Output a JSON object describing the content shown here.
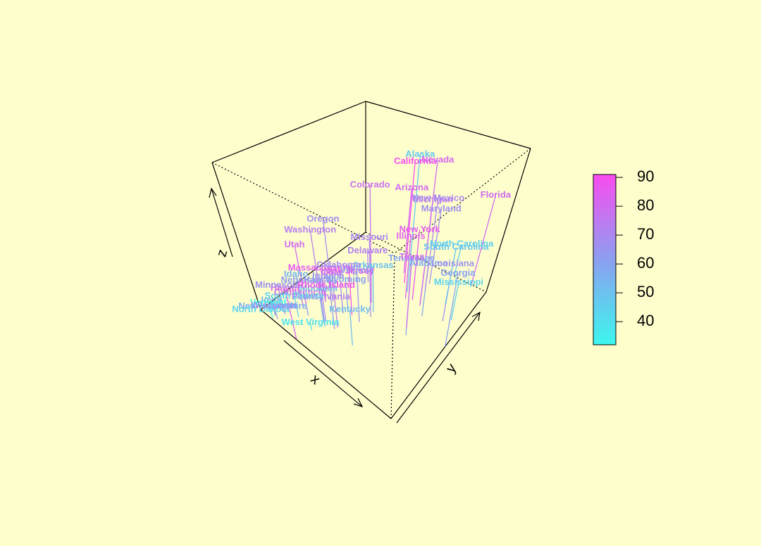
{
  "chart_data": {
    "type": "scatter3d",
    "xlabel": "x",
    "ylabel": "y",
    "zlabel": "z",
    "xlim": [
      0.8,
      17.4
    ],
    "ylim": [
      45,
      337
    ],
    "zlim": [
      7.3,
      46
    ],
    "clim": [
      32,
      91
    ],
    "cticks": [
      40,
      50,
      60,
      70,
      80,
      90
    ],
    "colors": [
      "#3cf7ee",
      "#8c9ff0",
      "#f94cf0"
    ],
    "labels": [
      "Alabama",
      "Alaska",
      "Arizona",
      "Arkansas",
      "California",
      "Colorado",
      "Connecticut",
      "Delaware",
      "Florida",
      "Georgia",
      "Hawaii",
      "Idaho",
      "Illinois",
      "Indiana",
      "Iowa",
      "Kansas",
      "Kentucky",
      "Louisiana",
      "Maine",
      "Maryland",
      "Massachusetts",
      "Michigan",
      "Minnesota",
      "Mississippi",
      "Missouri",
      "Montana",
      "Nebraska",
      "Nevada",
      "New Hampshire",
      "New Jersey",
      "New Mexico",
      "New York",
      "North Carolina",
      "North Dakota",
      "Ohio",
      "Oklahoma",
      "Oregon",
      "Pennsylvania",
      "Rhode Island",
      "South Carolina",
      "South Dakota",
      "Tennessee",
      "Texas",
      "Utah",
      "Vermont",
      "Virginia",
      "Washington",
      "West Virginia",
      "Wisconsin",
      "Wyoming"
    ],
    "x": [
      13.2,
      10.0,
      8.1,
      8.8,
      9.0,
      7.9,
      3.3,
      5.9,
      15.4,
      17.4,
      5.3,
      2.6,
      10.4,
      7.2,
      2.2,
      6.0,
      9.7,
      15.4,
      2.1,
      11.3,
      4.4,
      12.1,
      2.7,
      16.1,
      9.0,
      6.0,
      4.3,
      12.2,
      2.1,
      7.4,
      11.4,
      11.1,
      13.0,
      0.8,
      7.3,
      6.6,
      4.9,
      6.3,
      3.4,
      14.4,
      3.8,
      13.2,
      12.7,
      3.2,
      2.2,
      8.5,
      4.0,
      5.7,
      2.6,
      6.8
    ],
    "y": [
      236,
      263,
      294,
      190,
      276,
      204,
      110,
      238,
      335,
      211,
      46,
      120,
      249,
      113,
      56,
      115,
      109,
      249,
      83,
      300,
      149,
      255,
      72,
      259,
      178,
      109,
      102,
      252,
      57,
      159,
      285,
      254,
      337,
      45,
      120,
      151,
      159,
      106,
      174,
      279,
      86,
      188,
      201,
      120,
      48,
      156,
      145,
      81,
      53,
      161
    ],
    "z": [
      21.2,
      44.5,
      31.0,
      19.5,
      40.6,
      38.7,
      11.1,
      15.8,
      31.9,
      25.8,
      20.2,
      14.2,
      24.0,
      21.0,
      11.3,
      18.0,
      16.3,
      22.2,
      7.8,
      27.8,
      16.3,
      35.1,
      14.9,
      17.1,
      28.2,
      16.4,
      16.5,
      46.0,
      9.5,
      18.8,
      32.1,
      26.1,
      16.1,
      7.3,
      21.4,
      20.0,
      29.3,
      14.9,
      8.3,
      22.5,
      12.8,
      26.9,
      25.5,
      22.9,
      11.2,
      20.7,
      26.2,
      9.3,
      10.8,
      15.6
    ],
    "colvar": [
      58,
      48,
      80,
      50,
      91,
      78,
      77,
      72,
      80,
      60,
      83,
      54,
      83,
      65,
      57,
      66,
      52,
      66,
      51,
      67,
      85,
      74,
      66,
      44,
      70,
      53,
      62,
      81,
      56,
      89,
      70,
      86,
      45,
      44,
      75,
      68,
      67,
      72,
      87,
      48,
      45,
      59,
      80,
      80,
      32,
      63,
      73,
      39,
      66,
      60
    ]
  }
}
